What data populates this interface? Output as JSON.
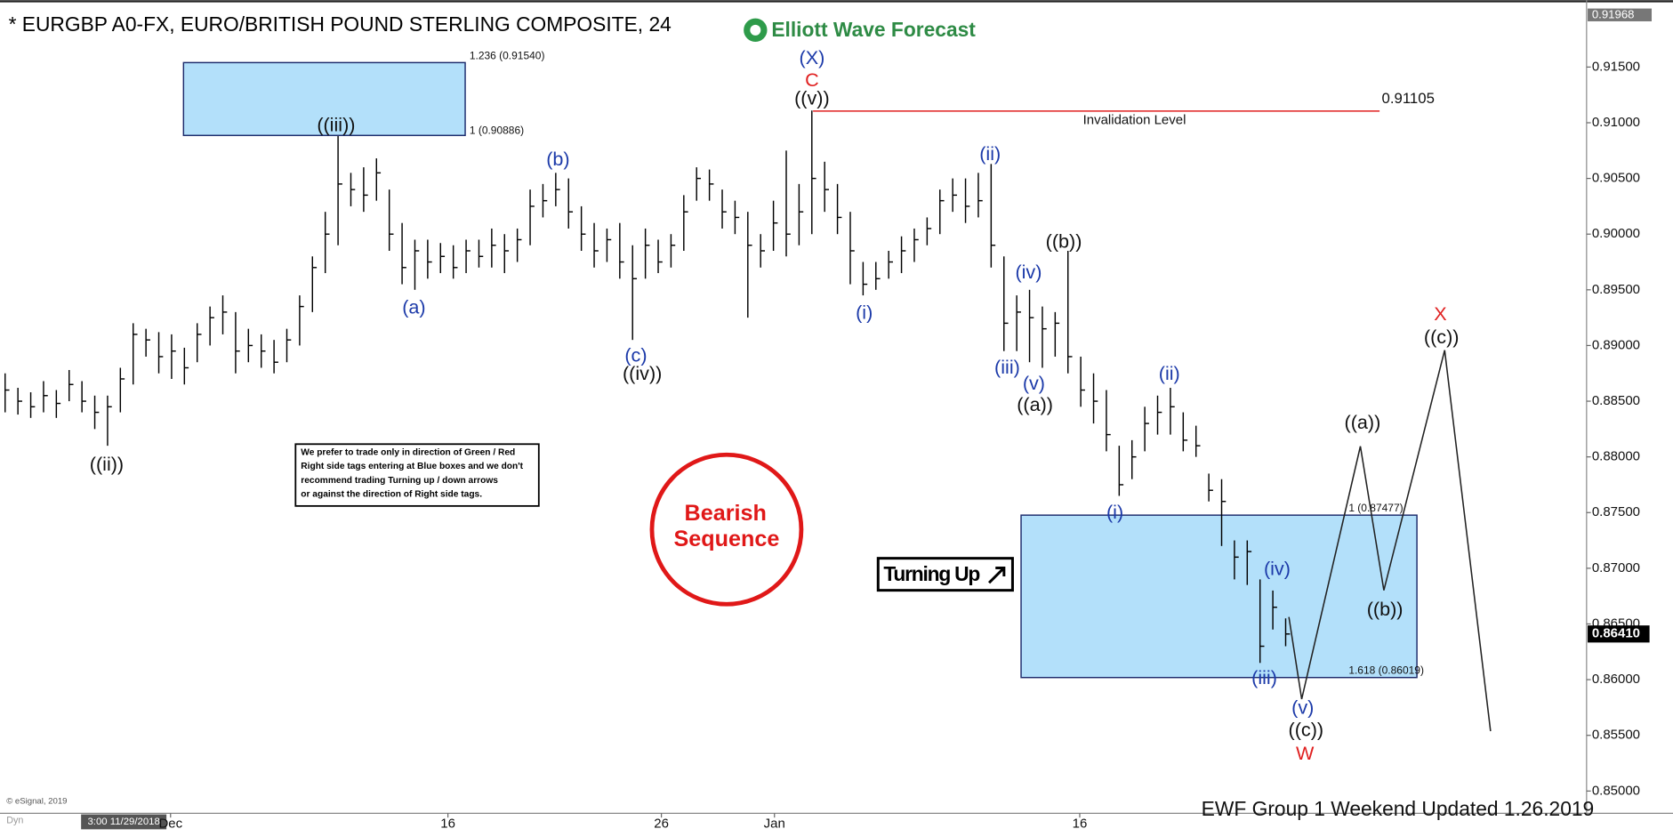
{
  "chart_data": {
    "type": "ohlc",
    "title": "* EURGBP A0-FX, EURO/BRITISH POUND STERLING COMPOSITE, 24",
    "brand": "Elliott Wave Forecast",
    "footer": "EWF Group 1  Weekend  Updated 1.26.2019",
    "copyright": "© eSignal, 2019",
    "cursor_label": "3:00 11/29/2018",
    "dyn_label": "Dyn",
    "note_lines": [
      "We prefer to trade only in direction of Green / Red",
      "Right side tags entering at Blue boxes and we don't",
      "recommend trading Turning up / down arrows",
      "or against the direction of Right side tags."
    ],
    "badge_lines": [
      "Bearish",
      "Sequence"
    ],
    "turning_label": "Turning Up",
    "ylim": [
      0.848,
      0.921
    ],
    "xlim": [
      -0.4,
      123.5
    ],
    "yticks": [
      {
        "value": 0.85,
        "label": "0.85000"
      },
      {
        "value": 0.855,
        "label": "0.85500"
      },
      {
        "value": 0.86,
        "label": "0.86000"
      },
      {
        "value": 0.865,
        "label": "0.86500"
      },
      {
        "value": 0.87,
        "label": "0.87000"
      },
      {
        "value": 0.875,
        "label": "0.87500"
      },
      {
        "value": 0.88,
        "label": "0.88000"
      },
      {
        "value": 0.885,
        "label": "0.88500"
      },
      {
        "value": 0.89,
        "label": "0.89000"
      },
      {
        "value": 0.895,
        "label": "0.89500"
      },
      {
        "value": 0.9,
        "label": "0.90000"
      },
      {
        "value": 0.905,
        "label": "0.90500"
      },
      {
        "value": 0.91,
        "label": "0.91000"
      },
      {
        "value": 0.915,
        "label": "0.91500"
      }
    ],
    "xticks": [
      {
        "value": 12.92,
        "label": "Dec"
      },
      {
        "value": 34.58,
        "label": "16"
      },
      {
        "value": 51.25,
        "label": "26"
      },
      {
        "value": 60.08,
        "label": "Jan"
      },
      {
        "value": 83.92,
        "label": "16"
      }
    ],
    "top_price": {
      "value": 0.91968,
      "label": "0.91968"
    },
    "last_price": {
      "value": 0.8641,
      "label": "0.86410"
    },
    "invalidation": {
      "value": 0.91105,
      "label": "0.91105",
      "text": "Invalidation Level",
      "color": "#e02020"
    },
    "boxes": [
      {
        "top": {
          "value": 0.9154,
          "label": "1.236 (0.91540)"
        },
        "bottom": {
          "value": 0.90886,
          "label": "1 (0.90886)"
        }
      },
      {
        "top": {
          "value": 0.87477,
          "label": "1 (0.87477)"
        },
        "bottom": {
          "value": 0.86019,
          "label": "1.618 (0.86019)"
        }
      }
    ],
    "color": "#000000",
    "x": [
      0,
      1,
      2,
      3,
      4,
      5,
      6,
      7,
      8,
      9,
      10,
      11,
      12,
      13,
      14,
      15,
      16,
      17,
      18,
      19,
      20,
      21,
      22,
      23,
      24,
      25,
      26,
      27,
      28,
      29,
      30,
      31,
      32,
      33,
      34,
      35,
      36,
      37,
      38,
      39,
      40,
      41,
      42,
      43,
      44,
      45,
      46,
      47,
      48,
      49,
      50,
      51,
      52,
      53,
      54,
      55,
      56,
      57,
      58,
      59,
      60,
      61,
      62,
      63,
      64,
      65,
      66,
      67,
      68,
      69,
      70,
      71,
      72,
      73,
      74,
      75,
      76,
      77,
      78,
      79,
      80,
      81,
      82,
      83,
      84,
      85,
      86,
      87,
      88,
      89,
      90,
      91,
      92,
      93,
      94,
      95,
      96,
      97,
      98,
      99,
      100
    ],
    "high": [
      0.8875,
      0.8862,
      0.8858,
      0.8868,
      0.886,
      0.8878,
      0.8868,
      0.8855,
      0.8855,
      0.888,
      0.892,
      0.8915,
      0.8912,
      0.891,
      0.8898,
      0.892,
      0.8935,
      0.8945,
      0.893,
      0.8915,
      0.891,
      0.8905,
      0.8915,
      0.8945,
      0.898,
      0.902,
      0.9088,
      0.9055,
      0.906,
      0.9068,
      0.904,
      0.901,
      0.8995,
      0.8995,
      0.8992,
      0.899,
      0.8995,
      0.8995,
      0.9005,
      0.9,
      0.9005,
      0.904,
      0.9045,
      0.9055,
      0.905,
      0.9025,
      0.901,
      0.9005,
      0.901,
      0.899,
      0.9005,
      0.8995,
      0.9,
      0.9035,
      0.906,
      0.9058,
      0.904,
      0.903,
      0.902,
      0.9,
      0.903,
      0.9075,
      0.9045,
      0.9111,
      0.9065,
      0.9045,
      0.902,
      0.8975,
      0.8975,
      0.8985,
      0.8998,
      0.9005,
      0.9015,
      0.904,
      0.905,
      0.905,
      0.9055,
      0.9063,
      0.898,
      0.8945,
      0.895,
      0.8935,
      0.893,
      0.8985,
      0.889,
      0.8875,
      0.886,
      0.881,
      0.8815,
      0.8845,
      0.8855,
      0.8862,
      0.884,
      0.8828,
      0.8785,
      0.878,
      0.8725,
      0.8725,
      0.869,
      0.868,
      0.8655
    ],
    "low": [
      0.884,
      0.8838,
      0.8835,
      0.884,
      0.8835,
      0.885,
      0.884,
      0.8825,
      0.881,
      0.884,
      0.8865,
      0.889,
      0.8875,
      0.887,
      0.8865,
      0.8885,
      0.89,
      0.891,
      0.8875,
      0.8885,
      0.888,
      0.8875,
      0.8885,
      0.89,
      0.893,
      0.8965,
      0.899,
      0.9025,
      0.902,
      0.903,
      0.8985,
      0.8955,
      0.895,
      0.896,
      0.8965,
      0.896,
      0.8965,
      0.897,
      0.897,
      0.8965,
      0.8975,
      0.899,
      0.9015,
      0.9025,
      0.9005,
      0.8985,
      0.897,
      0.8975,
      0.896,
      0.8905,
      0.896,
      0.8965,
      0.897,
      0.8985,
      0.903,
      0.903,
      0.9005,
      0.9,
      0.8925,
      0.897,
      0.8985,
      0.898,
      0.899,
      0.9,
      0.902,
      0.9,
      0.8955,
      0.8945,
      0.895,
      0.896,
      0.8965,
      0.8975,
      0.899,
      0.9,
      0.902,
      0.901,
      0.9015,
      0.897,
      0.8895,
      0.8895,
      0.8885,
      0.888,
      0.889,
      0.8875,
      0.8845,
      0.883,
      0.8805,
      0.8765,
      0.878,
      0.8805,
      0.882,
      0.882,
      0.8805,
      0.88,
      0.876,
      0.872,
      0.869,
      0.8685,
      0.8615,
      0.8645,
      0.863
    ],
    "close": [
      0.886,
      0.885,
      0.8845,
      0.8855,
      0.8848,
      0.8865,
      0.885,
      0.884,
      0.8845,
      0.887,
      0.891,
      0.8905,
      0.889,
      0.8895,
      0.888,
      0.891,
      0.8925,
      0.893,
      0.8895,
      0.89,
      0.8895,
      0.8885,
      0.8905,
      0.8935,
      0.897,
      0.9,
      0.9045,
      0.904,
      0.9035,
      0.9055,
      0.9,
      0.897,
      0.8985,
      0.8975,
      0.898,
      0.897,
      0.8985,
      0.898,
      0.899,
      0.8985,
      0.8995,
      0.9025,
      0.903,
      0.904,
      0.902,
      0.9,
      0.8985,
      0.8995,
      0.8975,
      0.896,
      0.899,
      0.8975,
      0.899,
      0.902,
      0.905,
      0.9045,
      0.902,
      0.9015,
      0.899,
      0.8985,
      0.901,
      0.9,
      0.902,
      0.905,
      0.904,
      0.9015,
      0.8985,
      0.8955,
      0.896,
      0.8975,
      0.8985,
      0.8995,
      0.9005,
      0.903,
      0.9035,
      0.9025,
      0.903,
      0.899,
      0.892,
      0.893,
      0.8925,
      0.8915,
      0.892,
      0.889,
      0.886,
      0.885,
      0.882,
      0.8775,
      0.88,
      0.883,
      0.884,
      0.8845,
      0.8815,
      0.881,
      0.877,
      0.876,
      0.871,
      0.8715,
      0.863,
      0.8665,
      0.8641
    ],
    "wave_labels": [
      {
        "text": "((ii))",
        "color": "#111111"
      },
      {
        "text": "((iii))",
        "color": "#111111"
      },
      {
        "text": "(a)",
        "color": "#1c3aa9"
      },
      {
        "text": "(b)",
        "color": "#1c3aa9"
      },
      {
        "text": "(c)",
        "color": "#1c3aa9"
      },
      {
        "text": "((iv))",
        "color": "#111111"
      },
      {
        "text": "(X)",
        "color": "#1c3aa9"
      },
      {
        "text": "C",
        "color": "#e02020"
      },
      {
        "text": "((v))",
        "color": "#111111"
      },
      {
        "text": "(i)",
        "color": "#1c3aa9"
      },
      {
        "text": "(ii)",
        "color": "#1c3aa9"
      },
      {
        "text": "(iv)",
        "color": "#1c3aa9"
      },
      {
        "text": "((b))",
        "color": "#111111"
      },
      {
        "text": "(iii)",
        "color": "#1c3aa9"
      },
      {
        "text": "(v)",
        "color": "#1c3aa9"
      },
      {
        "text": "((a))",
        "color": "#111111"
      },
      {
        "text": "(i)",
        "color": "#1c3aa9"
      },
      {
        "text": "(ii)",
        "color": "#1c3aa9"
      },
      {
        "text": "(iv)",
        "color": "#1c3aa9"
      },
      {
        "text": "(iii)",
        "color": "#1c3aa9"
      },
      {
        "text": "(v)",
        "color": "#1c3aa9"
      },
      {
        "text": "((c))",
        "color": "#111111"
      },
      {
        "text": "W",
        "color": "#e02020"
      },
      {
        "text": "((a))",
        "color": "#111111"
      },
      {
        "text": "((b))",
        "color": "#111111"
      },
      {
        "text": "X",
        "color": "#e02020"
      },
      {
        "text": "((c))",
        "color": "#111111"
      }
    ]
  }
}
